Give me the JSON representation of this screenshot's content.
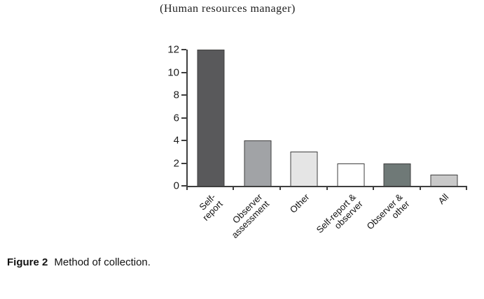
{
  "page": {
    "background": "#ffffff"
  },
  "chart_data": {
    "type": "bar",
    "title": "(Human resources manager)",
    "categories": [
      "Self-report",
      "Observer\nassessment",
      "Other",
      "Self-report &\nobserver",
      "Observer &\nother",
      "All"
    ],
    "values": [
      12,
      4,
      3,
      2,
      2,
      1
    ],
    "xlabel": "",
    "ylabel": "",
    "ylim": [
      0,
      12
    ],
    "ytick_step": 2,
    "grid": false,
    "legend": false,
    "bar_colors": [
      "#59595b",
      "#a1a3a6",
      "#e5e5e5",
      "#ffffff",
      "#6f7977",
      "#c9c9c9"
    ],
    "bar_border_color": "#3f3f3f",
    "axis_color": "#3f3f3f"
  },
  "caption": {
    "label": "Figure 2",
    "text": "Method of collection."
  }
}
